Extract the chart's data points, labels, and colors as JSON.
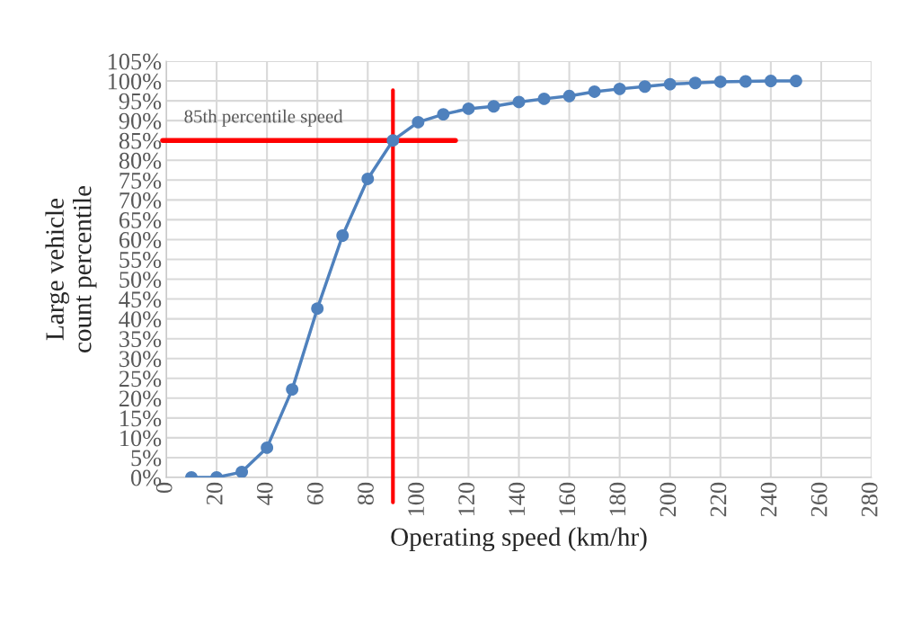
{
  "chart_data": {
    "type": "line",
    "xlabel": "Operating speed (km/hr)",
    "ylabel": "Large vehicle\ncount percentile",
    "x": [
      10,
      20,
      30,
      40,
      50,
      60,
      70,
      80,
      90,
      100,
      110,
      120,
      130,
      140,
      150,
      160,
      170,
      180,
      190,
      200,
      210,
      220,
      230,
      240,
      250
    ],
    "series": [
      {
        "color": "#4f81bd",
        "values": [
          0,
          0,
          1.4,
          7.5,
          22.2,
          42.6,
          61,
          75.3,
          85,
          89.6,
          91.6,
          93,
          93.6,
          94.7,
          95.5,
          96.2,
          97.3,
          98,
          98.6,
          99.2,
          99.5,
          99.8,
          99.9,
          100,
          100
        ]
      }
    ],
    "xlim": [
      0,
      280
    ],
    "xticks": [
      0,
      20,
      40,
      60,
      80,
      100,
      120,
      140,
      160,
      180,
      200,
      220,
      240,
      260,
      280
    ],
    "ylim": [
      0,
      105
    ],
    "yticks": [
      {
        "value": 0,
        "label": "0%"
      },
      {
        "value": 5,
        "label": "5%"
      },
      {
        "value": 10,
        "label": "10%"
      },
      {
        "value": 15,
        "label": "15%"
      },
      {
        "value": 20,
        "label": "20%"
      },
      {
        "value": 25,
        "label": "25%"
      },
      {
        "value": 30,
        "label": "30%"
      },
      {
        "value": 35,
        "label": "35%"
      },
      {
        "value": 40,
        "label": "40%"
      },
      {
        "value": 45,
        "label": "45%"
      },
      {
        "value": 50,
        "label": "50%"
      },
      {
        "value": 55,
        "label": "55%"
      },
      {
        "value": 60,
        "label": "60%"
      },
      {
        "value": 65,
        "label": "65%"
      },
      {
        "value": 70,
        "label": "70%"
      },
      {
        "value": 75,
        "label": "75%"
      },
      {
        "value": 80,
        "label": "80%"
      },
      {
        "value": 85,
        "label": "85%"
      },
      {
        "value": 90,
        "label": "90%"
      },
      {
        "value": 95,
        "label": "95%"
      },
      {
        "value": 100,
        "label": "100%"
      },
      {
        "value": 105,
        "label": "105%"
      }
    ],
    "ref_lines": [
      {
        "axis": "y",
        "value": 85,
        "label": "85th percentile speed",
        "color": "#ff0000"
      },
      {
        "axis": "x",
        "value": 90,
        "color": "#ff0000"
      }
    ],
    "grid": true,
    "marker": "circle",
    "line_style": "solid",
    "legend": false
  }
}
